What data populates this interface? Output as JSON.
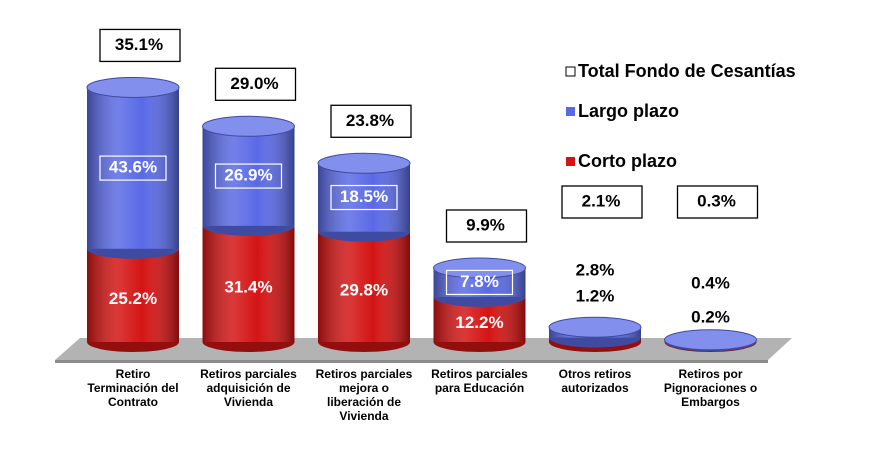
{
  "chart_data": {
    "type": "cylinder",
    "categories": [
      "Retiro Terminación del Contrato",
      "Retiros parciales adquisición de Vivienda",
      "Retiros parciales mejora o liberación de Vivienda",
      "Retiros parciales para Educación",
      "Otros retiros autorizados",
      "Retiros por Pignoraciones o Embargos"
    ],
    "series": [
      {
        "name": "Total Fondo de Cesantías",
        "color": "#ffffff",
        "values": [
          35.1,
          29,
          23.8,
          9.9,
          2.1,
          0.3
        ],
        "value_labels": [
          "35.1%",
          "29.0%",
          "23.8%",
          "9.9%",
          "2.1%",
          "0.3%"
        ]
      },
      {
        "name": "Largo plazo",
        "color": "#5a6ae6",
        "values": [
          43.6,
          26.9,
          18.5,
          7.8,
          2.8,
          0.4
        ],
        "value_labels": [
          "43.6%",
          "26.9%",
          "18.5%",
          "7.8%",
          "2.8%",
          "0.4%"
        ]
      },
      {
        "name": "Corto plazo",
        "color": "#d41414",
        "values": [
          25.2,
          31.4,
          29.8,
          12.2,
          1.2,
          0.2
        ],
        "value_labels": [
          "25.2%",
          "31.4%",
          "29.8%",
          "12.2%",
          "1.2%",
          "0.2%"
        ]
      }
    ]
  }
}
